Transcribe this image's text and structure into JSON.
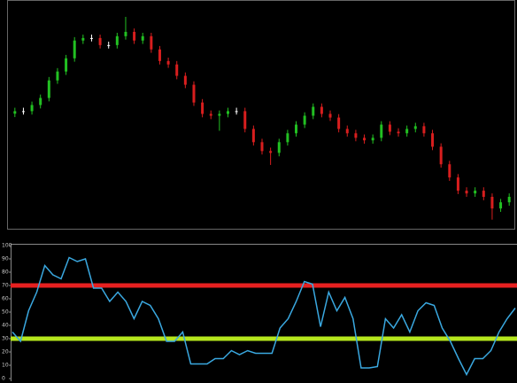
{
  "chart_data": [
    {
      "type": "candlestick",
      "open": [
        50.5,
        51.6,
        51.6,
        54.3,
        57.4,
        65.1,
        69.0,
        74.8,
        82.6,
        83.7,
        83.7,
        80.6,
        80.6,
        84.5,
        86.4,
        82.6,
        84.5,
        78.7,
        73.6,
        72.1,
        67.1,
        63.2,
        55.4,
        50.4,
        49.6,
        50.4,
        51.6,
        51.6,
        43.8,
        38.0,
        34.1,
        33.3,
        38.0,
        41.9,
        45.7,
        49.6,
        53.5,
        50.4,
        48.8,
        43.8,
        41.9,
        39.9,
        38.8,
        39.9,
        45.7,
        42.6,
        41.9,
        43.8,
        45.0,
        41.9,
        36.0,
        28.3,
        22.5,
        16.7,
        15.5,
        16.7,
        14.0,
        8.9,
        11.6
      ],
      "high": [
        53.1,
        53.1,
        55.8,
        58.9,
        66.6,
        70.5,
        76.3,
        84.1,
        85.2,
        85.2,
        85.2,
        82.1,
        86.0,
        93.0,
        87.9,
        86.0,
        86.0,
        80.2,
        75.1,
        73.6,
        68.6,
        64.7,
        56.9,
        51.9,
        51.9,
        53.1,
        53.1,
        53.1,
        45.3,
        39.5,
        35.6,
        39.5,
        43.4,
        47.2,
        51.1,
        55.0,
        55.0,
        51.9,
        50.3,
        45.3,
        43.4,
        41.4,
        41.4,
        47.2,
        47.2,
        44.1,
        45.3,
        46.5,
        46.5,
        43.4,
        37.5,
        29.8,
        24.0,
        18.2,
        18.2,
        18.2,
        15.5,
        13.1,
        15.5
      ],
      "low": [
        49.0,
        50.1,
        50.1,
        52.8,
        55.9,
        63.6,
        67.5,
        73.3,
        81.1,
        82.2,
        79.1,
        79.1,
        79.1,
        83.0,
        81.1,
        81.1,
        77.2,
        72.1,
        70.6,
        65.6,
        61.7,
        53.9,
        48.9,
        48.1,
        43.0,
        48.9,
        50.1,
        42.3,
        36.5,
        32.6,
        28.0,
        31.8,
        36.5,
        40.4,
        44.2,
        48.1,
        48.9,
        47.3,
        42.3,
        40.4,
        38.4,
        37.3,
        37.3,
        38.4,
        41.1,
        40.4,
        40.4,
        42.3,
        40.4,
        34.5,
        26.8,
        21.0,
        15.2,
        14.0,
        14.0,
        12.5,
        4.0,
        7.4,
        10.1
      ],
      "close": [
        51.6,
        51.6,
        54.3,
        57.4,
        65.1,
        69.0,
        74.8,
        82.6,
        83.7,
        83.7,
        80.6,
        80.6,
        84.5,
        86.4,
        82.6,
        84.5,
        78.7,
        73.6,
        72.1,
        67.1,
        63.2,
        55.4,
        50.4,
        49.6,
        50.4,
        51.6,
        51.6,
        43.8,
        38.0,
        34.1,
        33.3,
        38.0,
        41.9,
        45.7,
        49.6,
        53.5,
        50.4,
        48.8,
        43.8,
        41.9,
        39.9,
        38.8,
        39.9,
        45.7,
        42.6,
        41.9,
        43.8,
        45.0,
        41.9,
        36.0,
        28.3,
        22.5,
        16.7,
        15.5,
        16.7,
        14.0,
        8.9,
        11.6,
        14.0
      ],
      "up_color": "#22c022",
      "down_color": "#d81e1e",
      "flat_color": "#ffffff",
      "ylim": [
        0,
        100
      ]
    },
    {
      "type": "line",
      "values": [
        35,
        28,
        51,
        65,
        85,
        78,
        75,
        91,
        88,
        90,
        68,
        68,
        58,
        65,
        58,
        45,
        58,
        55,
        45,
        28,
        28,
        35,
        11,
        11,
        11,
        15,
        15,
        21,
        18,
        21,
        19,
        19,
        19,
        38,
        45,
        58,
        73,
        71,
        39,
        65,
        51,
        61,
        45,
        8,
        8,
        9,
        45,
        38,
        48,
        35,
        51,
        57,
        55,
        38,
        28,
        15,
        3,
        15,
        15,
        21,
        35,
        45,
        53
      ],
      "color": "#3aa8e0",
      "ylim": [
        0,
        100
      ],
      "yticks": [
        0,
        10,
        20,
        30,
        40,
        50,
        60,
        70,
        80,
        90,
        100
      ],
      "hlines": [
        {
          "value": 70,
          "color": "#e62020"
        },
        {
          "value": 30,
          "color": "#b5e61d"
        }
      ]
    }
  ]
}
